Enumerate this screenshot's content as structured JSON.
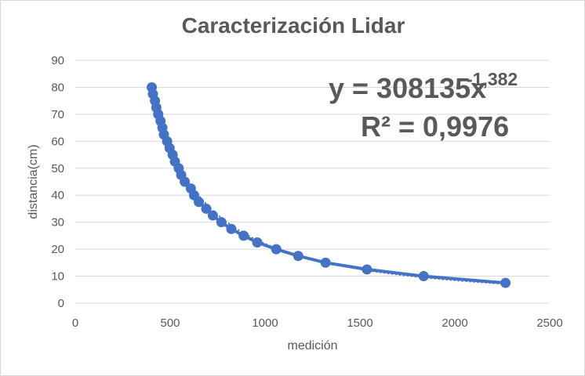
{
  "chart_data": {
    "type": "scatter",
    "title": "Caracterización Lidar",
    "xlabel": "medición",
    "ylabel": "distancia(cm)",
    "xlim": [
      0,
      2500
    ],
    "ylim": [
      0,
      90
    ],
    "xticks": [
      0,
      500,
      1000,
      1500,
      2000,
      2500
    ],
    "yticks": [
      0,
      10,
      20,
      30,
      40,
      50,
      60,
      70,
      80,
      90
    ],
    "grid": "horizontal",
    "series": [
      {
        "color": "#4472c4",
        "points": [
          [
            403,
            80
          ],
          [
            409,
            77.5
          ],
          [
            420,
            75
          ],
          [
            427,
            72.5
          ],
          [
            437,
            70
          ],
          [
            449,
            67.5
          ],
          [
            459,
            65
          ],
          [
            467,
            62.5
          ],
          [
            484,
            60
          ],
          [
            497,
            57.5
          ],
          [
            513,
            55
          ],
          [
            525,
            52.5
          ],
          [
            545,
            50
          ],
          [
            558,
            47.5
          ],
          [
            577,
            45
          ],
          [
            609,
            42.5
          ],
          [
            626,
            40
          ],
          [
            651,
            37.5
          ],
          [
            690,
            35
          ],
          [
            725,
            32.5
          ],
          [
            770,
            30
          ],
          [
            822,
            27.5
          ],
          [
            887,
            25
          ],
          [
            959,
            22.5
          ],
          [
            1059,
            20
          ],
          [
            1175,
            17.5
          ],
          [
            1319,
            15
          ],
          [
            1537,
            12.5
          ],
          [
            1836,
            10
          ],
          [
            2267,
            7.5
          ]
        ]
      }
    ],
    "trendline": {
      "type": "power",
      "coefficient": 308135,
      "exponent": -1.382,
      "equation_base": "y = 308135x",
      "equation_exponent": "-1,382",
      "r2_label": "R² = 0,9976",
      "color": "#4472c4"
    }
  }
}
